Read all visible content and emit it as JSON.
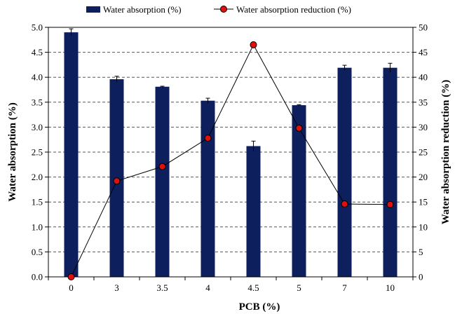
{
  "chart_data": {
    "type": "bar",
    "categories": [
      "0",
      "3",
      "3.5",
      "4",
      "4.5",
      "5",
      "7",
      "10"
    ],
    "series": [
      {
        "name": "Water absorption  (%)",
        "type": "bar",
        "axis": "left",
        "values": [
          4.9,
          3.96,
          3.81,
          3.53,
          2.62,
          3.44,
          4.19,
          4.19
        ],
        "errors": [
          0.07,
          0.06,
          0.01,
          0.05,
          0.1,
          0.01,
          0.05,
          0.09
        ]
      },
      {
        "name": "Water absorption reduction (%)",
        "type": "line",
        "axis": "right",
        "values": [
          0,
          19.2,
          22.1,
          27.8,
          46.5,
          29.8,
          14.6,
          14.5
        ]
      }
    ],
    "xlabel": "PCB (%)",
    "ylabel": "Water absorption  (%)",
    "y2label": "Water absorption  reduction (%)",
    "ylim": [
      0,
      5
    ],
    "y2lim": [
      0,
      50
    ],
    "yticks": [
      "0.0",
      "0.5",
      "1.0",
      "1.5",
      "2.0",
      "2.5",
      "3.0",
      "3.5",
      "4.0",
      "4.5",
      "5.0"
    ],
    "y2ticks": [
      "0",
      "5",
      "10",
      "15",
      "20",
      "25",
      "30",
      "35",
      "40",
      "45",
      "50"
    ],
    "grid": "horizontal dashed",
    "legend": "top",
    "colors": {
      "bar": "#0d1f5c",
      "marker": "#e01010",
      "line": "#000000",
      "grid": "#555555"
    }
  }
}
